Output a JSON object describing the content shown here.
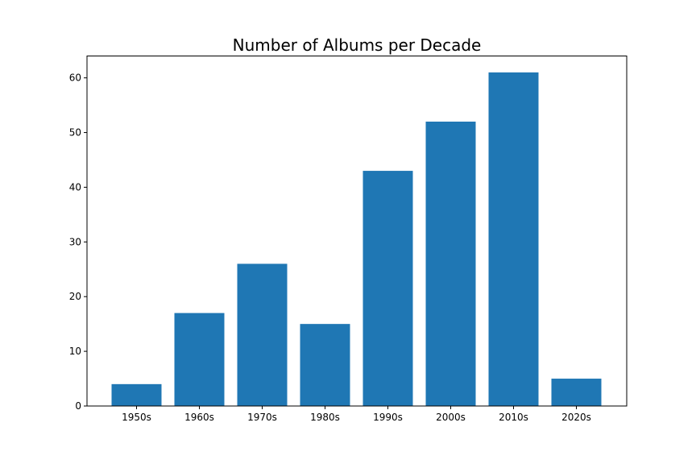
{
  "chart_data": {
    "type": "bar",
    "title": "Number of Albums per Decade",
    "xlabel": "",
    "ylabel": "",
    "categories": [
      "1950s",
      "1960s",
      "1970s",
      "1980s",
      "1990s",
      "2000s",
      "2010s",
      "2020s"
    ],
    "values": [
      4,
      17,
      26,
      15,
      43,
      52,
      61,
      5
    ],
    "ylim": [
      0,
      64
    ],
    "yticks": [
      0,
      10,
      20,
      30,
      40,
      50,
      60
    ],
    "grid": false,
    "legend": "none",
    "bar_color": "#1f77b4",
    "axis_color": "#000000"
  }
}
